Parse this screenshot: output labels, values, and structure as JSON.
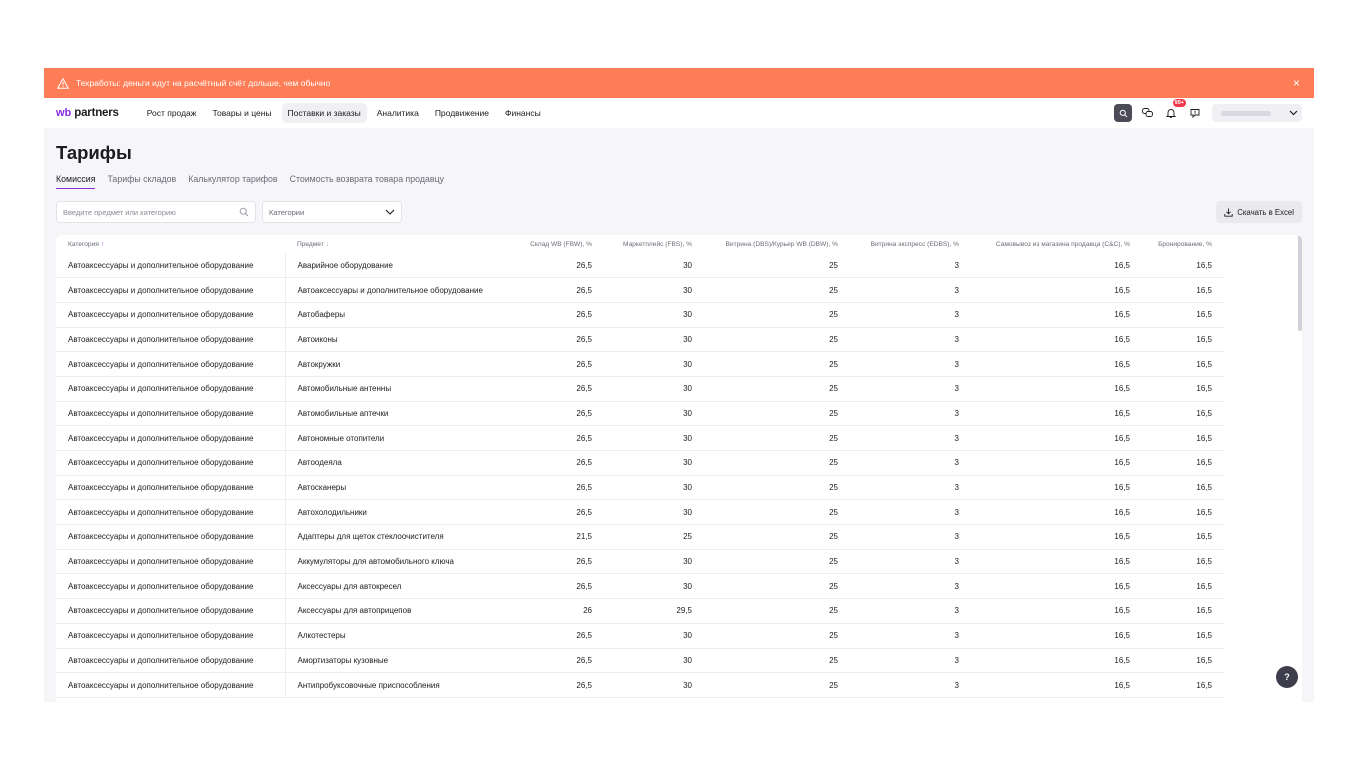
{
  "banner": {
    "text": "Техработы: деньги идут на расчётный счёт дольше, чем обычно",
    "close": "×"
  },
  "logo": {
    "wb": "wb",
    "partners": "partners"
  },
  "nav": [
    "Рост продаж",
    "Товары и цены",
    "Поставки и заказы",
    "Аналитика",
    "Продвижение",
    "Финансы"
  ],
  "nav_active_index": 2,
  "notifications_badge": "99+",
  "page_title": "Тарифы",
  "tabs": [
    "Комиссия",
    "Тарифы складов",
    "Калькулятор тарифов",
    "Стоимость возврата товара продавцу"
  ],
  "search_placeholder": "Введите предмет или категорию",
  "category_select": "Категории",
  "excel_button": "Скачать в Excel",
  "help": "?",
  "table": {
    "headers": [
      "Категория",
      "Предмет",
      "Склад WB (FBW), %",
      "Маркетплейс (FBS), %",
      "Витрина (DBS)/Курьер WB (DBW), %",
      "Витрина экспресс (EDBS), %",
      "Самовывоз из магазина продавца (C&C), %",
      "Бронирование, %"
    ],
    "rows": [
      [
        "Автоаксессуары и дополнительное оборудование",
        "Аварийное оборудование",
        "26,5",
        "30",
        "25",
        "3",
        "16,5",
        "16,5"
      ],
      [
        "Автоаксессуары и дополнительное оборудование",
        "Автоаксессуары и дополнительное оборудование",
        "26,5",
        "30",
        "25",
        "3",
        "16,5",
        "16,5"
      ],
      [
        "Автоаксессуары и дополнительное оборудование",
        "Автобаферы",
        "26,5",
        "30",
        "25",
        "3",
        "16,5",
        "16,5"
      ],
      [
        "Автоаксессуары и дополнительное оборудование",
        "Автоиконы",
        "26,5",
        "30",
        "25",
        "3",
        "16,5",
        "16,5"
      ],
      [
        "Автоаксессуары и дополнительное оборудование",
        "Автокружки",
        "26,5",
        "30",
        "25",
        "3",
        "16,5",
        "16,5"
      ],
      [
        "Автоаксессуары и дополнительное оборудование",
        "Автомобильные антенны",
        "26,5",
        "30",
        "25",
        "3",
        "16,5",
        "16,5"
      ],
      [
        "Автоаксессуары и дополнительное оборудование",
        "Автомобильные аптечки",
        "26,5",
        "30",
        "25",
        "3",
        "16,5",
        "16,5"
      ],
      [
        "Автоаксессуары и дополнительное оборудование",
        "Автономные отопители",
        "26,5",
        "30",
        "25",
        "3",
        "16,5",
        "16,5"
      ],
      [
        "Автоаксессуары и дополнительное оборудование",
        "Автоодеяла",
        "26,5",
        "30",
        "25",
        "3",
        "16,5",
        "16,5"
      ],
      [
        "Автоаксессуары и дополнительное оборудование",
        "Автосканеры",
        "26,5",
        "30",
        "25",
        "3",
        "16,5",
        "16,5"
      ],
      [
        "Автоаксессуары и дополнительное оборудование",
        "Автохолодильники",
        "26,5",
        "30",
        "25",
        "3",
        "16,5",
        "16,5"
      ],
      [
        "Автоаксессуары и дополнительное оборудование",
        "Адаптеры для щеток стеклоочистителя",
        "21,5",
        "25",
        "25",
        "3",
        "16,5",
        "16,5"
      ],
      [
        "Автоаксессуары и дополнительное оборудование",
        "Аккумуляторы для автомобильного ключа",
        "26,5",
        "30",
        "25",
        "3",
        "16,5",
        "16,5"
      ],
      [
        "Автоаксессуары и дополнительное оборудование",
        "Аксессуары для автокресел",
        "26,5",
        "30",
        "25",
        "3",
        "16,5",
        "16,5"
      ],
      [
        "Автоаксессуары и дополнительное оборудование",
        "Аксессуары для автоприцепов",
        "26",
        "29,5",
        "25",
        "3",
        "16,5",
        "16,5"
      ],
      [
        "Автоаксессуары и дополнительное оборудование",
        "Алкотестеры",
        "26,5",
        "30",
        "25",
        "3",
        "16,5",
        "16,5"
      ],
      [
        "Автоаксессуары и дополнительное оборудование",
        "Амортизаторы кузовные",
        "26,5",
        "30",
        "25",
        "3",
        "16,5",
        "16,5"
      ],
      [
        "Автоаксессуары и дополнительное оборудование",
        "Антипробуксовочные приспособления",
        "26,5",
        "30",
        "25",
        "3",
        "16,5",
        "16,5"
      ]
    ]
  },
  "colors": {
    "banner": "#ff7d56",
    "accent": "#8a2be2",
    "badge": "#f0364a"
  }
}
